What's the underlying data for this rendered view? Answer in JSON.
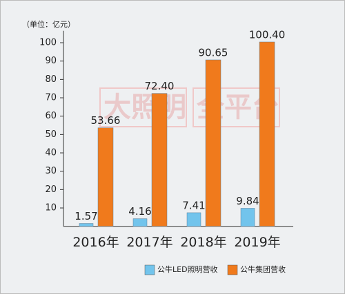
{
  "chart_data": {
    "type": "bar",
    "y_axis_label": "（单位：亿元）",
    "watermark": [
      "大照明",
      "全平台"
    ],
    "categories": [
      "2016年",
      "2017年",
      "2018年",
      "2019年"
    ],
    "series": [
      {
        "name": "公牛LED照明营收",
        "color": "#72c4ec",
        "values": [
          1.57,
          4.16,
          7.41,
          9.84
        ]
      },
      {
        "name": "公牛集团营收",
        "color": "#f07a1c",
        "values": [
          53.66,
          72.4,
          90.65,
          100.4
        ],
        "value_labels": [
          "53.66",
          "72.40",
          "90.65",
          "100.40"
        ]
      }
    ],
    "ylim": [
      0,
      105
    ],
    "yticks": [
      10,
      20,
      30,
      40,
      50,
      60,
      70,
      80,
      90,
      100
    ],
    "grid": false,
    "legend": "bottom"
  }
}
